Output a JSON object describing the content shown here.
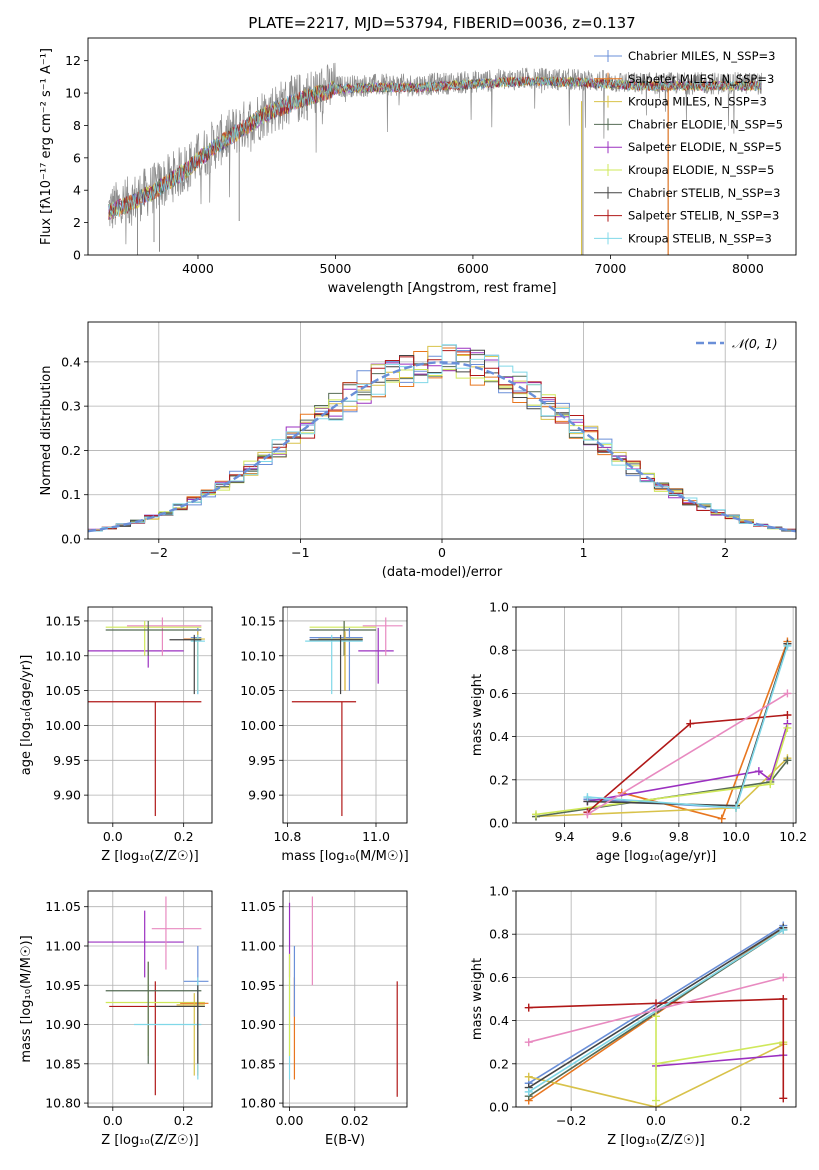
{
  "colors": {
    "chabrier_miles": "#6a8fd8",
    "salpeter_miles": "#e8761f",
    "kroupa_miles": "#d8c24a",
    "chabrier_elodie": "#556b55",
    "salpeter_elodie": "#9b30c0",
    "kroupa_elodie": "#cfe85a",
    "chabrier_stelib": "#444444",
    "salpeter_stelib": "#b01818",
    "kroupa_stelib": "#80d8e8",
    "spectrum_gray": "#8c8c8c",
    "pink": "#e88ac0",
    "grid": "#b0b0b0"
  },
  "chart_data": [
    {
      "id": "spectrum",
      "type": "line",
      "title": "PLATE=2217, MJD=53794, FIBERID=0036, z=0.137",
      "xlabel": "wavelength [Angstrom, rest frame]",
      "ylabel": "Flux [fλ10⁻¹⁷ erg cm⁻² s⁻¹ A⁻¹]",
      "xlim": [
        3200,
        8350
      ],
      "ylim": [
        0,
        13.4
      ],
      "xticks": [
        4000,
        5000,
        6000,
        7000,
        8000
      ],
      "yticks": [
        0,
        2,
        4,
        6,
        8,
        10,
        12
      ],
      "grid": false,
      "legend_position": "right",
      "legend": [
        "Chabrier MILES, N_SSP=3",
        "Salpeter MILES, N_SSP=3",
        "Kroupa MILES, N_SSP=3",
        "Chabrier ELODIE, N_SSP=5",
        "Salpeter ELODIE, N_SSP=5",
        "Kroupa ELODIE, N_SSP=5",
        "Chabrier STELIB, N_SSP=3",
        "Salpeter STELIB, N_SSP=3",
        "Kroupa STELIB, N_SSP=3"
      ],
      "continuum": {
        "x": [
          3350,
          3500,
          3700,
          3900,
          4100,
          4300,
          4500,
          4800,
          5000,
          5300,
          5600,
          6000,
          6400,
          6800,
          7200,
          7600,
          8000,
          8100
        ],
        "y": [
          2.8,
          3.3,
          4.2,
          5.3,
          6.7,
          7.8,
          8.9,
          9.9,
          10.4,
          10.5,
          10.5,
          10.7,
          10.9,
          10.8,
          10.6,
          10.6,
          10.6,
          10.6
        ]
      },
      "spikes": [
        {
          "x": 3560,
          "y": 0.0
        },
        {
          "x": 3680,
          "y": 0.8
        },
        {
          "x": 3720,
          "y": 0.2
        },
        {
          "x": 4300,
          "y": 2.1
        },
        {
          "x": 6800,
          "y": 0.0
        },
        {
          "x": 7420,
          "y": 0.0
        }
      ]
    },
    {
      "id": "residuals",
      "type": "step",
      "xlabel": "(data-model)/error",
      "ylabel": "Normed distribution",
      "xlim": [
        -2.5,
        2.5
      ],
      "ylim": [
        0,
        0.49
      ],
      "xticks": [
        -2,
        -1,
        0,
        1,
        2
      ],
      "xticklabels": [
        "−2",
        "−1",
        "0",
        "1",
        "2"
      ],
      "yticks": [
        0.0,
        0.1,
        0.2,
        0.3,
        0.4
      ],
      "yticklabels": [
        "0.0",
        "0.1",
        "0.2",
        "0.3",
        "0.4"
      ],
      "grid": true,
      "legend_position": "top-right",
      "legend_label": "𝒩(0, 1)",
      "bin_width": 0.1
    },
    {
      "id": "age_vs_Z",
      "type": "errorbar",
      "xlabel": "Z [log₁₀(Z/Z☉)]",
      "ylabel": "age  [log₁₀(age/yr)]",
      "xlim": [
        -0.07,
        0.28
      ],
      "ylim": [
        9.86,
        10.17
      ],
      "xticks": [
        0.0,
        0.2
      ],
      "xticklabels": [
        "0.0",
        "0.2"
      ],
      "yticks": [
        9.9,
        9.95,
        10.0,
        10.05,
        10.1,
        10.15
      ],
      "yticklabels": [
        "9.90",
        "9.95",
        "10.00",
        "10.05",
        "10.10",
        "10.15"
      ],
      "grid": true,
      "points": [
        {
          "c": "salpeter_stelib",
          "x": 0.12,
          "y": 10.034,
          "xe": [
            -0.07,
            0.25
          ],
          "ye": [
            9.87,
            10.034
          ]
        },
        {
          "c": "salpeter_elodie",
          "x": 0.1,
          "y": 10.107,
          "xe": [
            -0.07,
            0.2
          ],
          "ye": [
            10.083,
            10.14
          ]
        },
        {
          "c": "pink",
          "x": 0.14,
          "y": 10.143,
          "xe": [
            0.04,
            0.25
          ],
          "ye": [
            10.1,
            10.155
          ]
        },
        {
          "c": "kroupa_elodie",
          "x": 0.09,
          "y": 10.141,
          "xe": [
            -0.02,
            0.25
          ],
          "ye": [
            10.1,
            10.15
          ]
        },
        {
          "c": "chabrier_elodie",
          "x": 0.1,
          "y": 10.137,
          "xe": [
            -0.02,
            0.25
          ],
          "ye": [
            10.1,
            10.15
          ]
        },
        {
          "c": "chabrier_miles",
          "x": 0.24,
          "y": 10.126,
          "xe": [
            0.22,
            0.25
          ],
          "ye": [
            10.045,
            10.14
          ]
        },
        {
          "c": "salpeter_miles",
          "x": 0.24,
          "y": 10.124,
          "xe": [
            0.2,
            0.25
          ],
          "ye": [
            10.05,
            10.135
          ]
        },
        {
          "c": "kroupa_miles",
          "x": 0.24,
          "y": 10.124,
          "xe": [
            0.22,
            0.26
          ],
          "ye": [
            10.05,
            10.135
          ]
        },
        {
          "c": "kroupa_stelib",
          "x": 0.24,
          "y": 10.121,
          "xe": [
            0.22,
            0.26
          ],
          "ye": [
            10.045,
            10.13
          ]
        },
        {
          "c": "chabrier_stelib",
          "x": 0.23,
          "y": 10.123,
          "xe": [
            0.16,
            0.25
          ],
          "ye": [
            10.045,
            10.13
          ]
        }
      ]
    },
    {
      "id": "age_vs_mass",
      "type": "errorbar",
      "xlabel": "mass [log₁₀(M/M☉)]",
      "ylabel": "",
      "xlim": [
        10.79,
        11.07
      ],
      "ylim": [
        9.86,
        10.17
      ],
      "xticks": [
        10.8,
        11.0
      ],
      "xticklabels": [
        "10.8",
        "11.0"
      ],
      "yticks": [
        9.9,
        9.95,
        10.0,
        10.05,
        10.1,
        10.15
      ],
      "yticklabels": [
        "9.90",
        "9.95",
        "10.00",
        "10.05",
        "10.10",
        "10.15"
      ],
      "grid": true,
      "points": [
        {
          "c": "salpeter_stelib",
          "x": 10.923,
          "y": 10.034,
          "xe": [
            10.81,
            10.955
          ],
          "ye": [
            9.87,
            10.034
          ]
        },
        {
          "c": "salpeter_elodie",
          "x": 11.005,
          "y": 10.107,
          "xe": [
            10.96,
            11.04
          ],
          "ye": [
            10.06,
            10.14
          ]
        },
        {
          "c": "pink",
          "x": 11.022,
          "y": 10.143,
          "xe": [
            10.97,
            11.06
          ],
          "ye": [
            10.1,
            10.155
          ]
        },
        {
          "c": "kroupa_elodie",
          "x": 10.928,
          "y": 10.141,
          "xe": [
            10.85,
            11.0
          ],
          "ye": [
            10.1,
            10.15
          ]
        },
        {
          "c": "chabrier_elodie",
          "x": 10.928,
          "y": 10.137,
          "xe": [
            10.85,
            11.0
          ],
          "ye": [
            10.1,
            10.15
          ]
        },
        {
          "c": "chabrier_miles",
          "x": 10.94,
          "y": 10.126,
          "xe": [
            10.85,
            10.97
          ],
          "ye": [
            10.05,
            10.14
          ]
        },
        {
          "c": "salpeter_miles",
          "x": 10.93,
          "y": 10.124,
          "xe": [
            10.87,
            10.97
          ],
          "ye": [
            10.05,
            10.135
          ]
        },
        {
          "c": "kroupa_miles",
          "x": 10.93,
          "y": 10.124,
          "xe": [
            10.87,
            10.97
          ],
          "ye": [
            10.05,
            10.135
          ]
        },
        {
          "c": "kroupa_stelib",
          "x": 10.9,
          "y": 10.121,
          "xe": [
            10.84,
            10.97
          ],
          "ye": [
            10.045,
            10.13
          ]
        },
        {
          "c": "chabrier_stelib",
          "x": 10.92,
          "y": 10.123,
          "xe": [
            10.85,
            10.97
          ],
          "ye": [
            10.045,
            10.13
          ]
        }
      ]
    },
    {
      "id": "mass_weight_vs_age",
      "type": "line",
      "xlabel": "age  [log₁₀(age/yr)]",
      "ylabel": "mass weight",
      "xlim": [
        9.23,
        10.21
      ],
      "ylim": [
        0,
        1.0
      ],
      "xticks": [
        9.4,
        9.6,
        9.8,
        10.0,
        10.2
      ],
      "xticklabels": [
        "9.4",
        "9.6",
        "9.8",
        "10.0",
        "10.2"
      ],
      "yticks": [
        0.0,
        0.2,
        0.4,
        0.6,
        0.8,
        1.0
      ],
      "yticklabels": [
        "0.0",
        "0.2",
        "0.4",
        "0.6",
        "0.8",
        "1.0"
      ],
      "grid": true,
      "series": [
        {
          "c": "chabrier_miles",
          "x": [
            9.48,
            10.0,
            10.18
          ],
          "y": [
            0.11,
            0.07,
            0.83
          ]
        },
        {
          "c": "salpeter_miles",
          "x": [
            9.6,
            9.95,
            10.18
          ],
          "y": [
            0.14,
            0.02,
            0.84
          ]
        },
        {
          "c": "kroupa_miles",
          "x": [
            9.3,
            10.0,
            10.18
          ],
          "y": [
            0.03,
            0.07,
            0.3
          ]
        },
        {
          "c": "chabrier_elodie",
          "x": [
            9.3,
            10.12,
            10.18
          ],
          "y": [
            0.03,
            0.19,
            0.29
          ]
        },
        {
          "c": "salpeter_elodie",
          "x": [
            9.48,
            10.08,
            10.12,
            10.18
          ],
          "y": [
            0.1,
            0.24,
            0.2,
            0.46
          ]
        },
        {
          "c": "kroupa_elodie",
          "x": [
            9.3,
            10.12,
            10.18
          ],
          "y": [
            0.04,
            0.18,
            0.44
          ]
        },
        {
          "c": "chabrier_stelib",
          "x": [
            9.48,
            10.0,
            10.18
          ],
          "y": [
            0.1,
            0.08,
            0.83
          ]
        },
        {
          "c": "salpeter_stelib",
          "x": [
            9.48,
            9.84,
            10.18
          ],
          "y": [
            0.05,
            0.46,
            0.5
          ]
        },
        {
          "c": "kroupa_stelib",
          "x": [
            9.48,
            10.0,
            10.18
          ],
          "y": [
            0.12,
            0.07,
            0.82
          ]
        },
        {
          "c": "pink",
          "x": [
            9.48,
            10.18
          ],
          "y": [
            0.04,
            0.6
          ]
        }
      ]
    },
    {
      "id": "mass_vs_Z",
      "type": "errorbar",
      "xlabel": "Z [log₁₀(Z/Z☉)]",
      "ylabel": "mass [log₁₀(M/M☉)]",
      "xlim": [
        -0.07,
        0.28
      ],
      "ylim": [
        10.795,
        11.07
      ],
      "xticks": [
        0.0,
        0.2
      ],
      "xticklabels": [
        "0.0",
        "0.2"
      ],
      "yticks": [
        10.8,
        10.85,
        10.9,
        10.95,
        11.0,
        11.05
      ],
      "yticklabels": [
        "10.80",
        "10.85",
        "10.90",
        "10.95",
        "11.00",
        "11.05"
      ],
      "grid": true,
      "points": [
        {
          "c": "salpeter_stelib",
          "x": 0.12,
          "y": 10.923,
          "xe": [
            -0.01,
            0.24
          ],
          "ye": [
            10.81,
            10.955
          ]
        },
        {
          "c": "salpeter_elodie",
          "x": 0.09,
          "y": 11.005,
          "xe": [
            -0.07,
            0.2
          ],
          "ye": [
            10.96,
            11.045
          ]
        },
        {
          "c": "pink",
          "x": 0.15,
          "y": 11.022,
          "xe": [
            0.11,
            0.25
          ],
          "ye": [
            10.97,
            11.063
          ]
        },
        {
          "c": "kroupa_elodie",
          "x": 0.1,
          "y": 10.928,
          "xe": [
            -0.02,
            0.26
          ],
          "ye": [
            10.86,
            10.98
          ]
        },
        {
          "c": "chabrier_elodie",
          "x": 0.1,
          "y": 10.943,
          "xe": [
            -0.02,
            0.25
          ],
          "ye": [
            10.85,
            10.98
          ]
        },
        {
          "c": "chabrier_miles",
          "x": 0.24,
          "y": 10.955,
          "xe": [
            0.2,
            0.27
          ],
          "ye": [
            10.86,
            11.0
          ]
        },
        {
          "c": "salpeter_miles",
          "x": 0.24,
          "y": 10.927,
          "xe": [
            0.19,
            0.27
          ],
          "ye": [
            10.835,
            10.94
          ]
        },
        {
          "c": "kroupa_miles",
          "x": 0.23,
          "y": 10.925,
          "xe": [
            0.18,
            0.26
          ],
          "ye": [
            10.835,
            10.94
          ]
        },
        {
          "c": "kroupa_stelib",
          "x": 0.24,
          "y": 10.9,
          "xe": [
            0.06,
            0.25
          ],
          "ye": [
            10.83,
            10.96
          ]
        },
        {
          "c": "chabrier_stelib",
          "x": 0.24,
          "y": 10.923,
          "xe": [
            0.12,
            0.26
          ],
          "ye": [
            10.85,
            10.95
          ]
        }
      ]
    },
    {
      "id": "mass_vs_ebv",
      "type": "errorbar",
      "xlabel": "E(B-V)",
      "ylabel": "",
      "xlim": [
        -0.002,
        0.036
      ],
      "ylim": [
        10.795,
        11.07
      ],
      "xticks": [
        0.0,
        0.02
      ],
      "xticklabels": [
        "0.00",
        "0.02"
      ],
      "yticks": [
        10.8,
        10.85,
        10.9,
        10.95,
        11.0,
        11.05
      ],
      "yticklabels": [
        "10.80",
        "10.85",
        "10.90",
        "10.95",
        "11.00",
        "11.05"
      ],
      "grid": true,
      "points": [
        {
          "c": "salpeter_elodie",
          "x": 0.0,
          "y": 11.005,
          "xe": [
            0.0,
            0.0
          ],
          "ye": [
            10.96,
            11.055
          ]
        },
        {
          "c": "kroupa_stelib",
          "x": 0.0,
          "y": 10.9,
          "xe": [
            0.0,
            0.0
          ],
          "ye": [
            10.83,
            10.96
          ]
        },
        {
          "c": "salpeter_miles",
          "x": 0.0015,
          "y": 10.9,
          "xe": [
            0.0015,
            0.0015
          ],
          "ye": [
            10.83,
            10.96
          ]
        },
        {
          "c": "chabrier_miles",
          "x": 0.0015,
          "y": 10.955,
          "xe": [
            0.0015,
            0.0015
          ],
          "ye": [
            10.91,
            11.0
          ]
        },
        {
          "c": "kroupa_elodie",
          "x": 0.0,
          "y": 10.928,
          "xe": [
            0.0,
            0.0
          ],
          "ye": [
            10.86,
            10.99
          ]
        },
        {
          "c": "pink",
          "x": 0.007,
          "y": 11.0,
          "xe": [
            0.007,
            0.007
          ],
          "ye": [
            10.95,
            11.063
          ]
        },
        {
          "c": "salpeter_stelib",
          "x": 0.033,
          "y": 10.88,
          "xe": [
            0.033,
            0.033
          ],
          "ye": [
            10.808,
            10.955
          ]
        }
      ]
    },
    {
      "id": "mass_weight_vs_Z",
      "type": "line",
      "xlabel": "Z [log₁₀(Z/Z☉)]",
      "ylabel": "mass weight",
      "xlim": [
        -0.33,
        0.33
      ],
      "ylim": [
        0,
        1.0
      ],
      "xticks": [
        -0.2,
        0.0,
        0.2
      ],
      "xticklabels": [
        "−0.2",
        "0.0",
        "0.2"
      ],
      "yticks": [
        0.0,
        0.2,
        0.4,
        0.6,
        0.8,
        1.0
      ],
      "yticklabels": [
        "0.0",
        "0.2",
        "0.4",
        "0.6",
        "0.8",
        "1.0"
      ],
      "grid": true,
      "series": [
        {
          "c": "chabrier_miles",
          "x": [
            -0.3,
            0.3
          ],
          "y": [
            0.11,
            0.84
          ]
        },
        {
          "c": "salpeter_miles",
          "x": [
            -0.3,
            0.3
          ],
          "y": [
            0.03,
            0.83
          ]
        },
        {
          "c": "kroupa_miles",
          "x": [
            -0.3,
            0.0,
            0.3
          ],
          "y": [
            0.14,
            0.0,
            0.29
          ]
        },
        {
          "c": "chabrier_elodie",
          "x": [
            -0.3,
            0.3
          ],
          "y": [
            0.05,
            0.82
          ]
        },
        {
          "c": "salpeter_elodie",
          "x": [
            0.0,
            0.3
          ],
          "y": [
            0.19,
            0.24
          ]
        },
        {
          "c": "kroupa_elodie",
          "x": [
            0.0,
            0.3
          ],
          "y": [
            0.2,
            0.3
          ]
        },
        {
          "c": "chabrier_stelib",
          "x": [
            -0.3,
            0.3
          ],
          "y": [
            0.09,
            0.83
          ]
        },
        {
          "c": "salpeter_stelib",
          "x": [
            -0.3,
            0.0,
            0.3,
            0.3
          ],
          "y": [
            0.46,
            0.48,
            0.5,
            0.04
          ]
        },
        {
          "c": "kroupa_stelib",
          "x": [
            -0.3,
            0.3
          ],
          "y": [
            0.07,
            0.82
          ]
        },
        {
          "c": "pink",
          "x": [
            -0.3,
            0.0,
            0.3
          ],
          "y": [
            0.3,
            0.45,
            0.6
          ]
        },
        {
          "c": "kroupa_elodie",
          "x": [
            0.0,
            0.0
          ],
          "y": [
            0.03,
            0.42
          ]
        }
      ]
    }
  ]
}
